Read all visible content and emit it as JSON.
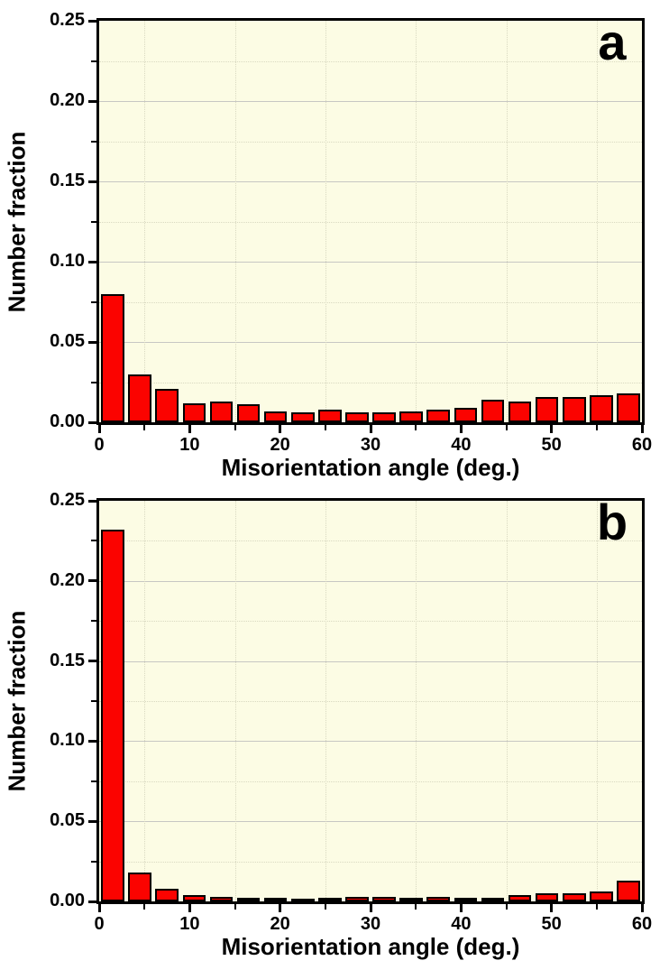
{
  "figure": {
    "background_color": "#ffffff",
    "plot_background_color": "#fcfce4",
    "bar_fill_color": "#fb0300",
    "bar_edge_color": "#000000",
    "grid_major_color": "#c7c7c3",
    "grid_minor_color": "#d9d9c1",
    "axis_color": "#000000"
  },
  "chart_data": [
    {
      "type": "bar",
      "panel_label": "a",
      "title": "",
      "xlabel": "Misorientation angle (deg.)",
      "ylabel": "Number fraction",
      "xlim": [
        0,
        60
      ],
      "ylim": [
        0,
        0.25
      ],
      "x_major_ticks": [
        0,
        10,
        20,
        30,
        40,
        50,
        60
      ],
      "x_minor_ticks": [
        5,
        15,
        25,
        35,
        45,
        55
      ],
      "y_major_ticks": [
        0,
        0.05,
        0.1,
        0.15,
        0.2,
        0.25
      ],
      "y_major_tick_labels": [
        "0.00",
        "0.05",
        "0.10",
        "0.15",
        "0.20",
        "0.25"
      ],
      "y_minor_ticks": [
        0.025,
        0.075,
        0.125,
        0.175,
        0.225
      ],
      "grid": "horizontal majors solid, minors dotted; vertical minors dotted",
      "legend_position": "none",
      "bin_start_deg": 0,
      "bin_width_deg": 3,
      "values": [
        0.08,
        0.03,
        0.021,
        0.012,
        0.013,
        0.011,
        0.007,
        0.006,
        0.008,
        0.006,
        0.006,
        0.007,
        0.008,
        0.009,
        0.014,
        0.013,
        0.016,
        0.016,
        0.017,
        0.018
      ]
    },
    {
      "type": "bar",
      "panel_label": "b",
      "title": "",
      "xlabel": "Misorientation angle (deg.)",
      "ylabel": "Number fraction",
      "xlim": [
        0,
        60
      ],
      "ylim": [
        0,
        0.25
      ],
      "x_major_ticks": [
        0,
        10,
        20,
        30,
        40,
        50,
        60
      ],
      "x_minor_ticks": [
        5,
        15,
        25,
        35,
        45,
        55
      ],
      "y_major_ticks": [
        0,
        0.05,
        0.1,
        0.15,
        0.2,
        0.25
      ],
      "y_major_tick_labels": [
        "0.00",
        "0.05",
        "0.10",
        "0.15",
        "0.20",
        "0.25"
      ],
      "y_minor_ticks": [
        0.025,
        0.075,
        0.125,
        0.175,
        0.225
      ],
      "grid": "horizontal majors solid, minors dotted; vertical minors dotted",
      "legend_position": "none",
      "bin_start_deg": 0,
      "bin_width_deg": 3,
      "values": [
        0.232,
        0.018,
        0.008,
        0.004,
        0.003,
        0.002,
        0.002,
        0.001,
        0.002,
        0.003,
        0.003,
        0.002,
        0.003,
        0.002,
        0.002,
        0.004,
        0.005,
        0.005,
        0.006,
        0.013
      ]
    }
  ]
}
